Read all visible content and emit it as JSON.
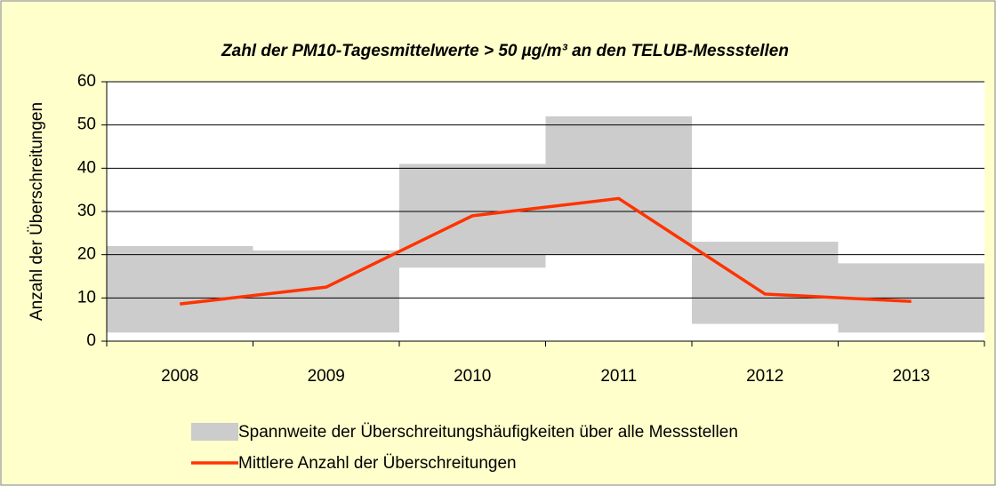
{
  "chart_data": {
    "type": "range-line",
    "title": "Zahl der PM10-Tagesmittelwerte > 50 µg/m³ an den TELUB-Messstellen",
    "ylabel": "Anzahl der Überschreitungen",
    "categories": [
      "2008",
      "2009",
      "2010",
      "2011",
      "2012",
      "2013"
    ],
    "series": [
      {
        "name": "Spannweite der Überschreitungshäufigkeiten über alle Messstellen",
        "color": "#cccccc",
        "low": [
          2,
          2,
          17,
          20,
          4,
          2
        ],
        "high": [
          22,
          21,
          41,
          52,
          23,
          18
        ]
      },
      {
        "name": "Mittlere Anzahl der Überschreitungen",
        "color": "#ff3300",
        "values": [
          8.6,
          12.5,
          29,
          33,
          10.9,
          9.2
        ]
      }
    ],
    "ylim": [
      0,
      60
    ],
    "yticks": [
      0,
      10,
      20,
      30,
      40,
      50,
      60
    ],
    "grid": true
  }
}
